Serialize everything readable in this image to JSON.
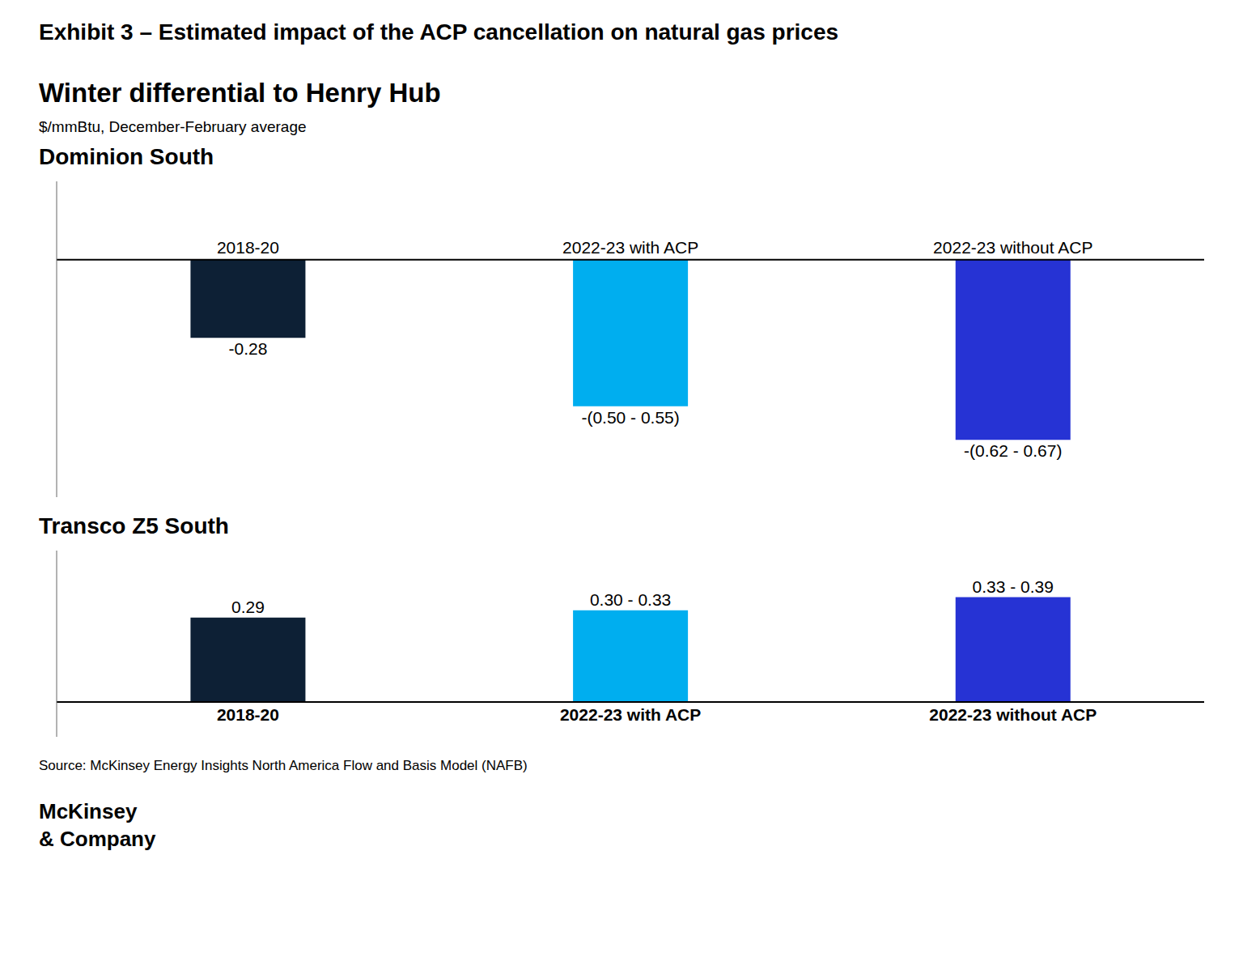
{
  "title": "Exhibit 3 – Estimated impact of the ACP cancellation on natural gas prices",
  "subtitles": [
    "Winter differential to Henry Hub",
    "$/mmBtu, December-February average"
  ],
  "source": "Source: McKinsey Energy Insights North America Flow and Basis Model (NAFB)",
  "annotations": [
    "McKinsey\n& Company"
  ],
  "chart_data": [
    {
      "type": "bar",
      "title": "Dominion South",
      "categories": [
        "2018-20",
        "2022-23 with ACP",
        "2022-23 without ACP"
      ],
      "values": [
        -0.28,
        -0.525,
        -0.645
      ],
      "value_labels": [
        "-0.28",
        "-(0.50 - 0.55)",
        "-(0.62 - 0.67)"
      ],
      "colors": [
        "#0d2035",
        "#00aeef",
        "#2633d4"
      ],
      "ylim": [
        -0.85,
        0.28
      ],
      "data_labels": true,
      "tick_labels": false,
      "grid": false
    },
    {
      "type": "bar",
      "title": "Transco Z5 South",
      "categories": [
        "2018-20",
        "2022-23 with ACP",
        "2022-23 without ACP"
      ],
      "values": [
        0.29,
        0.315,
        0.36
      ],
      "value_labels": [
        "0.29",
        "0.30 - 0.33",
        "0.33 - 0.39"
      ],
      "colors": [
        "#0d2035",
        "#00aeef",
        "#2633d4"
      ],
      "ylim": [
        -0.12,
        0.52
      ],
      "data_labels": true,
      "tick_labels": false,
      "grid": false
    }
  ]
}
